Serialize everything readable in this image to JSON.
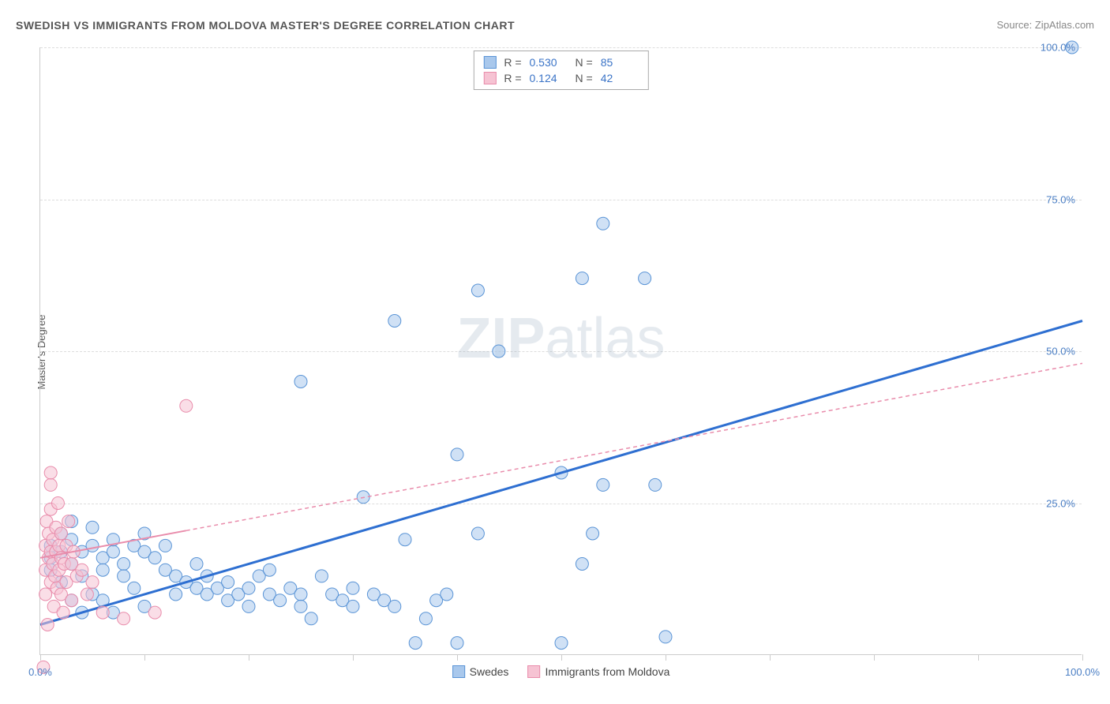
{
  "title": "SWEDISH VS IMMIGRANTS FROM MOLDOVA MASTER'S DEGREE CORRELATION CHART",
  "source": "Source: ZipAtlas.com",
  "ylabel": "Master's Degree",
  "watermark_bold": "ZIP",
  "watermark_light": "atlas",
  "chart": {
    "type": "scatter",
    "xlim": [
      0,
      100
    ],
    "ylim": [
      0,
      100
    ],
    "y_ticks": [
      0,
      25,
      50,
      75,
      100
    ],
    "y_tick_labels": [
      "0.0%",
      "25.0%",
      "50.0%",
      "75.0%",
      "100.0%"
    ],
    "x_ticks": [
      0,
      10,
      20,
      30,
      40,
      50,
      60,
      70,
      80,
      90,
      100
    ],
    "x_tick_labels_shown": {
      "0": "0.0%",
      "100": "100.0%"
    },
    "background_color": "#ffffff",
    "grid_color": "#dddddd",
    "axis_color": "#cccccc",
    "tick_label_color": "#4a7ec4",
    "marker_radius": 8,
    "marker_opacity": 0.55,
    "series": [
      {
        "name": "Swedes",
        "color_fill": "#a9c8ec",
        "color_stroke": "#5a94d6",
        "legend": {
          "R_label": "R =",
          "R": "0.530",
          "N_label": "N =",
          "N": "85"
        },
        "trend": {
          "x1": 0,
          "y1": 5,
          "x2": 100,
          "y2": 55,
          "color": "#2e6fd1",
          "width": 3,
          "dash": "none",
          "solid_to_x": 100
        },
        "points": [
          [
            1,
            16
          ],
          [
            1,
            18
          ],
          [
            1,
            14
          ],
          [
            2,
            17
          ],
          [
            2,
            20
          ],
          [
            2,
            12
          ],
          [
            3,
            19
          ],
          [
            3,
            15
          ],
          [
            3,
            22
          ],
          [
            4,
            17
          ],
          [
            4,
            13
          ],
          [
            5,
            18
          ],
          [
            5,
            10
          ],
          [
            5,
            21
          ],
          [
            6,
            16
          ],
          [
            6,
            14
          ],
          [
            7,
            17
          ],
          [
            7,
            19
          ],
          [
            8,
            15
          ],
          [
            8,
            13
          ],
          [
            9,
            18
          ],
          [
            9,
            11
          ],
          [
            10,
            17
          ],
          [
            10,
            20
          ],
          [
            10,
            8
          ],
          [
            11,
            16
          ],
          [
            12,
            14
          ],
          [
            12,
            18
          ],
          [
            13,
            13
          ],
          [
            13,
            10
          ],
          [
            14,
            12
          ],
          [
            15,
            11
          ],
          [
            15,
            15
          ],
          [
            16,
            10
          ],
          [
            16,
            13
          ],
          [
            17,
            11
          ],
          [
            18,
            9
          ],
          [
            18,
            12
          ],
          [
            19,
            10
          ],
          [
            20,
            11
          ],
          [
            20,
            8
          ],
          [
            21,
            13
          ],
          [
            22,
            10
          ],
          [
            22,
            14
          ],
          [
            23,
            9
          ],
          [
            24,
            11
          ],
          [
            25,
            10
          ],
          [
            25,
            8
          ],
          [
            26,
            6
          ],
          [
            27,
            13
          ],
          [
            28,
            10
          ],
          [
            29,
            9
          ],
          [
            30,
            8
          ],
          [
            30,
            11
          ],
          [
            31,
            26
          ],
          [
            32,
            10
          ],
          [
            33,
            9
          ],
          [
            34,
            8
          ],
          [
            35,
            19
          ],
          [
            36,
            2
          ],
          [
            37,
            6
          ],
          [
            38,
            9
          ],
          [
            39,
            10
          ],
          [
            40,
            2
          ],
          [
            25,
            45
          ],
          [
            34,
            55
          ],
          [
            40,
            33
          ],
          [
            42,
            60
          ],
          [
            42,
            20
          ],
          [
            44,
            50
          ],
          [
            50,
            2
          ],
          [
            50,
            30
          ],
          [
            52,
            15
          ],
          [
            52,
            62
          ],
          [
            53,
            20
          ],
          [
            54,
            71
          ],
          [
            54,
            28
          ],
          [
            58,
            62
          ],
          [
            59,
            28
          ],
          [
            60,
            3
          ],
          [
            99,
            100
          ],
          [
            3,
            9
          ],
          [
            4,
            7
          ],
          [
            6,
            9
          ],
          [
            7,
            7
          ]
        ]
      },
      {
        "name": "Immigrants from Moldova",
        "color_fill": "#f6c3d3",
        "color_stroke": "#e98cab",
        "legend": {
          "R_label": "R =",
          "R": "0.124",
          "N_label": "N =",
          "N": "42"
        },
        "trend": {
          "x1": 0,
          "y1": 16,
          "x2": 100,
          "y2": 48,
          "color": "#e98cab",
          "width": 2,
          "dash": "5,4",
          "solid_to_x": 14
        },
        "points": [
          [
            0.5,
            10
          ],
          [
            0.5,
            14
          ],
          [
            0.5,
            18
          ],
          [
            0.6,
            22
          ],
          [
            0.7,
            5
          ],
          [
            0.8,
            16
          ],
          [
            0.8,
            20
          ],
          [
            1,
            12
          ],
          [
            1,
            17
          ],
          [
            1,
            24
          ],
          [
            1,
            28
          ],
          [
            1.2,
            15
          ],
          [
            1.2,
            19
          ],
          [
            1.3,
            8
          ],
          [
            1.4,
            13
          ],
          [
            1.5,
            21
          ],
          [
            1.5,
            17
          ],
          [
            1.6,
            11
          ],
          [
            1.7,
            25
          ],
          [
            1.8,
            18
          ],
          [
            1.8,
            14
          ],
          [
            2,
            16
          ],
          [
            2,
            10
          ],
          [
            2,
            20
          ],
          [
            2.2,
            7
          ],
          [
            2.3,
            15
          ],
          [
            2.5,
            18
          ],
          [
            2.5,
            12
          ],
          [
            2.7,
            22
          ],
          [
            3,
            15
          ],
          [
            3,
            9
          ],
          [
            3.2,
            17
          ],
          [
            3.5,
            13
          ],
          [
            4,
            14
          ],
          [
            4.5,
            10
          ],
          [
            5,
            12
          ],
          [
            6,
            7
          ],
          [
            8,
            6
          ],
          [
            11,
            7
          ],
          [
            14,
            41
          ],
          [
            1,
            30
          ],
          [
            0.3,
            -2
          ]
        ]
      }
    ]
  },
  "legend_bottom": [
    "Swedes",
    "Immigrants from Moldova"
  ]
}
